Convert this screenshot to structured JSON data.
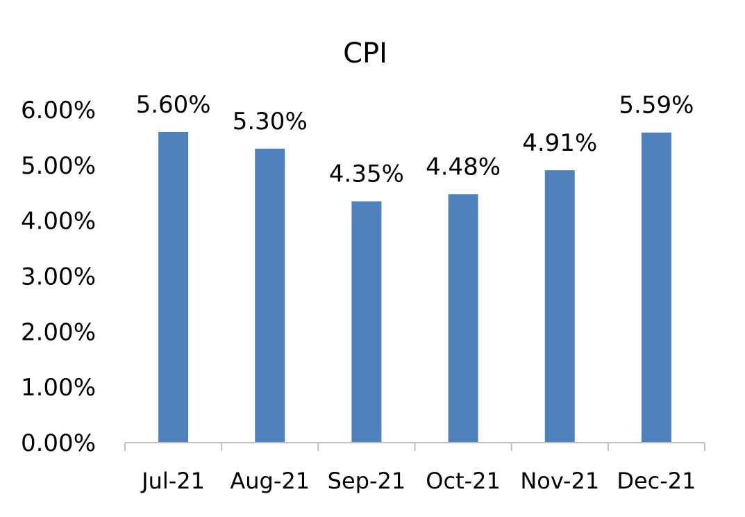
{
  "chart_data": {
    "type": "bar",
    "title": "CPI",
    "xlabel": "",
    "ylabel": "",
    "categories": [
      "Jul-21",
      "Aug-21",
      "Sep-21",
      "Oct-21",
      "Nov-21",
      "Dec-21"
    ],
    "values": [
      5.6,
      5.3,
      4.35,
      4.48,
      4.91,
      5.59
    ],
    "data_labels": [
      "5.60%",
      "5.30%",
      "4.35%",
      "4.48%",
      "4.91%",
      "5.59%"
    ],
    "ylim": [
      0,
      6
    ],
    "yticks": [
      0,
      1,
      2,
      3,
      4,
      5,
      6
    ],
    "ytick_labels": [
      "0.00%",
      "1.00%",
      "2.00%",
      "3.00%",
      "4.00%",
      "5.00%",
      "6.00%"
    ],
    "grid": false,
    "legend": "none",
    "bar_color": "#4f81bd",
    "axis_color": "#bfbfbf"
  }
}
